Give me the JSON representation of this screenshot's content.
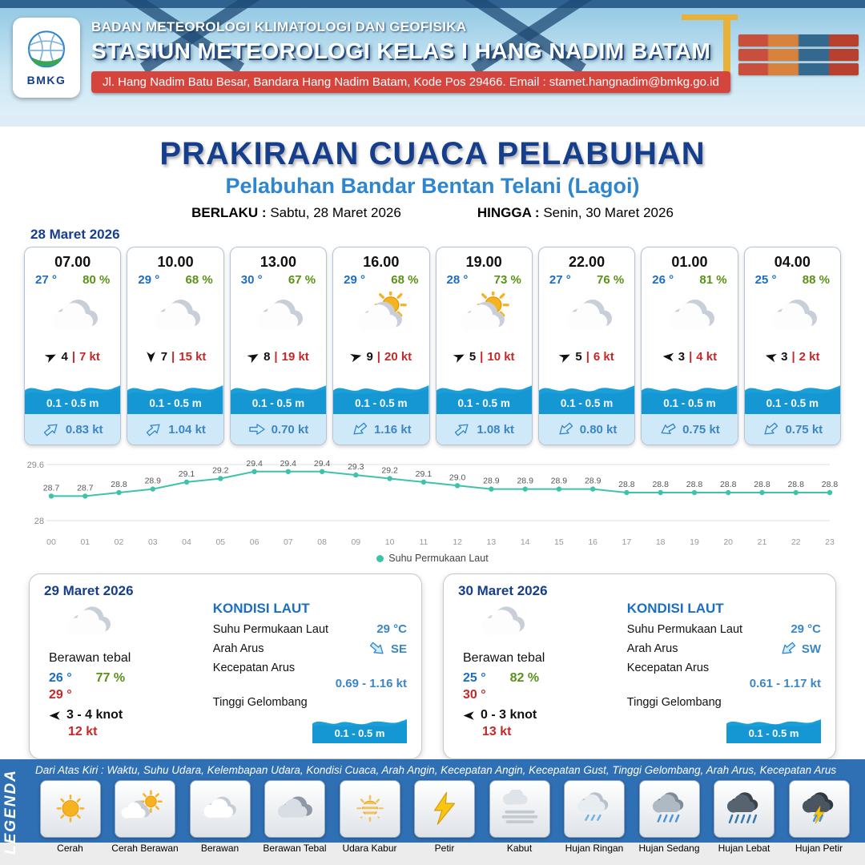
{
  "colors": {
    "primary_blue": "#153e8c",
    "subtitle_blue": "#2e86cf",
    "temp_blue": "#1b6ec2",
    "humidity_green": "#5a9216",
    "temp_red": "#c62828",
    "wave_blue": "#1a9fd9",
    "current_band_bg": "#cfe9f9",
    "legend_strip_blue": "#2f6fb3",
    "chart_line_teal": "#3ec3ab",
    "header_red": "#d6453d"
  },
  "header": {
    "logo": "BMKG",
    "agency": "BADAN METEOROLOGI KLIMATOLOGI DAN GEOFISIKA",
    "station": "STASIUN METEOROLOGI KELAS I HANG NADIM BATAM",
    "address": "Jl. Hang Nadim Batu Besar, Bandara Hang Nadim Batam, Kode Pos 29466. Email : stamet.hangnadim@bmkg.go.id"
  },
  "title": {
    "main": "PRAKIRAAN CUACA PELABUHAN",
    "subtitle": "Pelabuhan Bandar Bentan Telani (Lagoi)",
    "valid_label": "BERLAKU :",
    "valid_value": "Sabtu, 28 Maret 2026",
    "until_label": "HINGGA :",
    "until_value": "Senin, 30 Maret 2026"
  },
  "forecast_date": "28 Maret 2026",
  "forecast_cards": [
    {
      "time": "07.00",
      "temp": "27 °",
      "humidity": "80 %",
      "icon": "cloudy",
      "wind_dir": -25,
      "wind_speed": "4",
      "gust": "7 kt",
      "wave": "0.1 - 0.5 m",
      "current_dir": -40,
      "current": "0.83 kt"
    },
    {
      "time": "10.00",
      "temp": "29 °",
      "humidity": "68 %",
      "icon": "cloudy",
      "wind_dir": 90,
      "wind_speed": "7",
      "gust": "15 kt",
      "wave": "0.1 - 0.5 m",
      "current_dir": -40,
      "current": "1.04 kt"
    },
    {
      "time": "13.00",
      "temp": "30 °",
      "humidity": "67 %",
      "icon": "cloudy",
      "wind_dir": -30,
      "wind_speed": "8",
      "gust": "19 kt",
      "wave": "0.1 - 0.5 m",
      "current_dir": 0,
      "current": "0.70 kt"
    },
    {
      "time": "16.00",
      "temp": "29 °",
      "humidity": "68 %",
      "icon": "partly-sunny",
      "wind_dir": -15,
      "wind_speed": "9",
      "gust": "20 kt",
      "wave": "0.1 - 0.5 m",
      "current_dir": 140,
      "current": "1.16 kt"
    },
    {
      "time": "19.00",
      "temp": "28 °",
      "humidity": "73 %",
      "icon": "partly-sunny",
      "wind_dir": -25,
      "wind_speed": "5",
      "gust": "10 kt",
      "wave": "0.1 - 0.5 m",
      "current_dir": -40,
      "current": "1.08 kt"
    },
    {
      "time": "22.00",
      "temp": "27 °",
      "humidity": "76 %",
      "icon": "cloudy",
      "wind_dir": -25,
      "wind_speed": "5",
      "gust": "6 kt",
      "wave": "0.1 - 0.5 m",
      "current_dir": 140,
      "current": "0.80 kt"
    },
    {
      "time": "01.00",
      "temp": "26 °",
      "humidity": "81 %",
      "icon": "cloudy",
      "wind_dir": 185,
      "wind_speed": "3",
      "gust": "4 kt",
      "wave": "0.1 - 0.5 m",
      "current_dir": 150,
      "current": "0.75 kt"
    },
    {
      "time": "04.00",
      "temp": "25 °",
      "humidity": "88 %",
      "icon": "cloudy",
      "wind_dir": 195,
      "wind_speed": "3",
      "gust": "2 kt",
      "wave": "0.1 - 0.5 m",
      "current_dir": 140,
      "current": "0.75 kt"
    }
  ],
  "chart_data": {
    "type": "line",
    "series_name": "Suhu Permukaan Laut",
    "x": [
      "00",
      "01",
      "02",
      "03",
      "04",
      "05",
      "06",
      "07",
      "08",
      "09",
      "10",
      "11",
      "12",
      "13",
      "14",
      "15",
      "16",
      "17",
      "18",
      "19",
      "20",
      "21",
      "22",
      "23"
    ],
    "values": [
      28.7,
      28.7,
      28.8,
      28.9,
      29.1,
      29.2,
      29.4,
      29.4,
      29.4,
      29.3,
      29.2,
      29.1,
      29.0,
      28.9,
      28.9,
      28.9,
      28.9,
      28.8,
      28.8,
      28.8,
      28.8,
      28.8,
      28.8,
      28.8
    ],
    "ylim": [
      28,
      29.6
    ],
    "yticks": [
      "29.6",
      "28"
    ],
    "line_color": "#3ec3ab",
    "grid": true,
    "legend_position": "bottom"
  },
  "day_cards": [
    {
      "date": "29 Maret 2026",
      "icon": "cloudy",
      "condition": "Berawan tebal",
      "temp_min": "26 °",
      "humidity": "77 %",
      "temp_max": "29 °",
      "wind_dir": 180,
      "wind": "3 - 4 knot",
      "gust": "12 kt",
      "sea_title": "KONDISI LAUT",
      "sst_label": "Suhu Permukaan Laut",
      "sst": "29 °C",
      "current_dir_label": "Arah Arus",
      "current_dir": 40,
      "current_dir_text": "SE",
      "current_speed_label": "Kecepatan Arus",
      "current_speed": "0.69 - 1.16 kt",
      "wave_label": "Tinggi Gelombang",
      "wave": "0.1 - 0.5 m"
    },
    {
      "date": "30 Maret 2026",
      "icon": "cloudy",
      "condition": "Berawan tebal",
      "temp_min": "25 °",
      "humidity": "82 %",
      "temp_max": "30 °",
      "wind_dir": 180,
      "wind": "0 - 3 knot",
      "gust": "13 kt",
      "sea_title": "KONDISI LAUT",
      "sst_label": "Suhu Permukaan Laut",
      "sst": "29 °C",
      "current_dir_label": "Arah Arus",
      "current_dir": 140,
      "current_dir_text": "SW",
      "current_speed_label": "Kecepatan Arus",
      "current_speed": "0.61 - 1.17 kt",
      "wave_label": "Tinggi Gelombang",
      "wave": "0.1 - 0.5 m"
    }
  ],
  "legend": {
    "title": "LEGENDA",
    "description": "Dari Atas Kiri : Waktu, Suhu Udara, Kelembapan Udara, Kondisi Cuaca, Arah Angin, Kecepatan Angin, Kecepatan Gust, Tinggi Gelombang, Arah Arus, Kecepatan Arus",
    "items": [
      {
        "label": "Cerah",
        "icon": "sun"
      },
      {
        "label": "Cerah Berawan",
        "icon": "sun-cloud"
      },
      {
        "label": "Berawan",
        "icon": "cloud"
      },
      {
        "label": "Berawan Tebal",
        "icon": "cloud-thick"
      },
      {
        "label": "Udara Kabur",
        "icon": "hazy-sun"
      },
      {
        "label": "Petir",
        "icon": "lightning"
      },
      {
        "label": "Kabut",
        "icon": "fog"
      },
      {
        "label": "Hujan Ringan",
        "icon": "rain-light"
      },
      {
        "label": "Hujan Sedang",
        "icon": "rain-medium"
      },
      {
        "label": "Hujan Lebat",
        "icon": "rain-heavy"
      },
      {
        "label": "Hujan Petir",
        "icon": "rain-thunder"
      }
    ]
  }
}
